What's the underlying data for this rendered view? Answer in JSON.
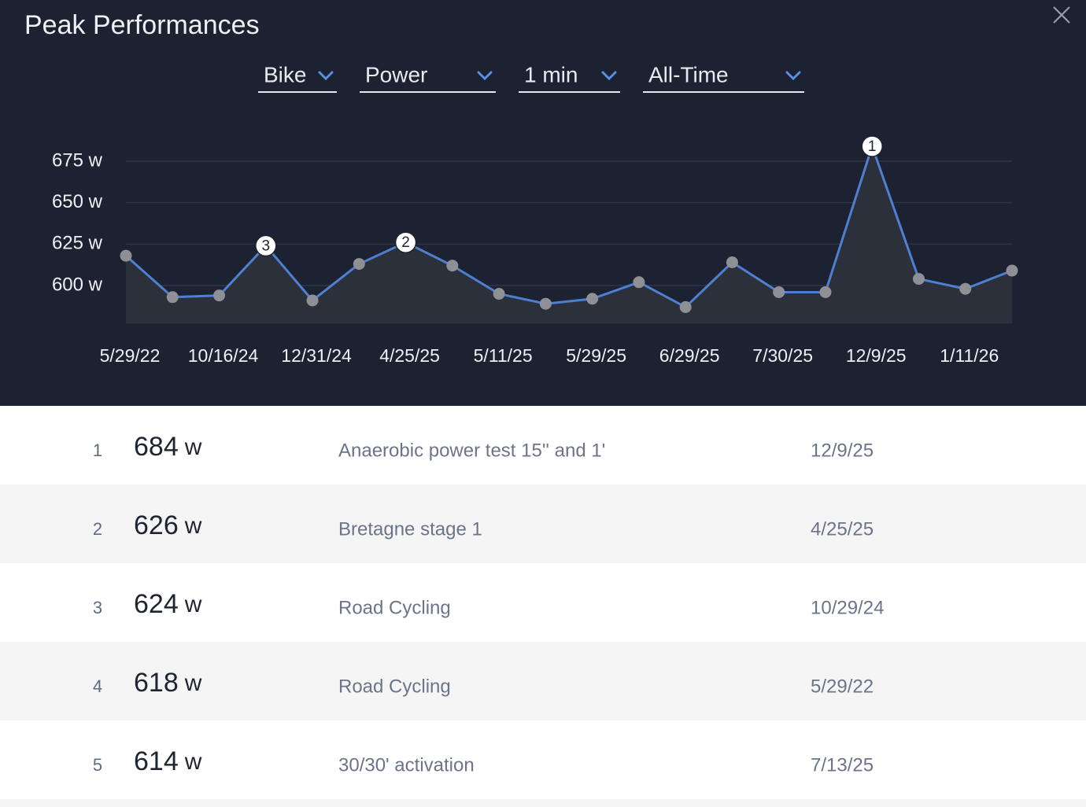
{
  "header": {
    "title": "Peak Performances"
  },
  "filters": [
    "Bike",
    "Power",
    "1 min",
    "All-Time"
  ],
  "chart_data": {
    "type": "line",
    "categories": [
      "5/29/22",
      null,
      "10/16/24",
      null,
      "12/31/24",
      null,
      "4/25/25",
      null,
      "5/11/25",
      null,
      "5/29/25",
      null,
      "6/29/25",
      null,
      "7/30/25",
      null,
      "12/9/25",
      null,
      "1/11/26",
      null
    ],
    "values": [
      618,
      593,
      594,
      624,
      591,
      613,
      626,
      612,
      595,
      589,
      592,
      602,
      587,
      614,
      596,
      596,
      684,
      604,
      598,
      609
    ],
    "point_labels": [
      null,
      null,
      null,
      "3",
      null,
      null,
      "2",
      null,
      null,
      null,
      null,
      null,
      null,
      null,
      null,
      null,
      "1",
      null,
      null,
      null
    ],
    "color": "#4f7fd0",
    "point_color": "#8e9096",
    "area_color": "#2c303b",
    "ylim": [
      577,
      690
    ],
    "yticks": [
      {
        "value": 600,
        "label": "600 w"
      },
      {
        "value": 625,
        "label": "625 w"
      },
      {
        "value": 650,
        "label": "650 w"
      },
      {
        "value": 675,
        "label": "675 w"
      }
    ],
    "grid": true
  },
  "table": {
    "rows": [
      {
        "rank": 1,
        "power": 684,
        "unit": "w",
        "activity": "Anaerobic power test 15'' and 1'",
        "date": "12/9/25"
      },
      {
        "rank": 2,
        "power": 626,
        "unit": "w",
        "activity": "Bretagne stage 1",
        "date": "4/25/25"
      },
      {
        "rank": 3,
        "power": 624,
        "unit": "w",
        "activity": "Road Cycling",
        "date": "10/29/24"
      },
      {
        "rank": 4,
        "power": 618,
        "unit": "w",
        "activity": "Road Cycling",
        "date": "5/29/22"
      },
      {
        "rank": 5,
        "power": 614,
        "unit": "w",
        "activity": "30/30' activation",
        "date": "7/13/25"
      }
    ]
  }
}
